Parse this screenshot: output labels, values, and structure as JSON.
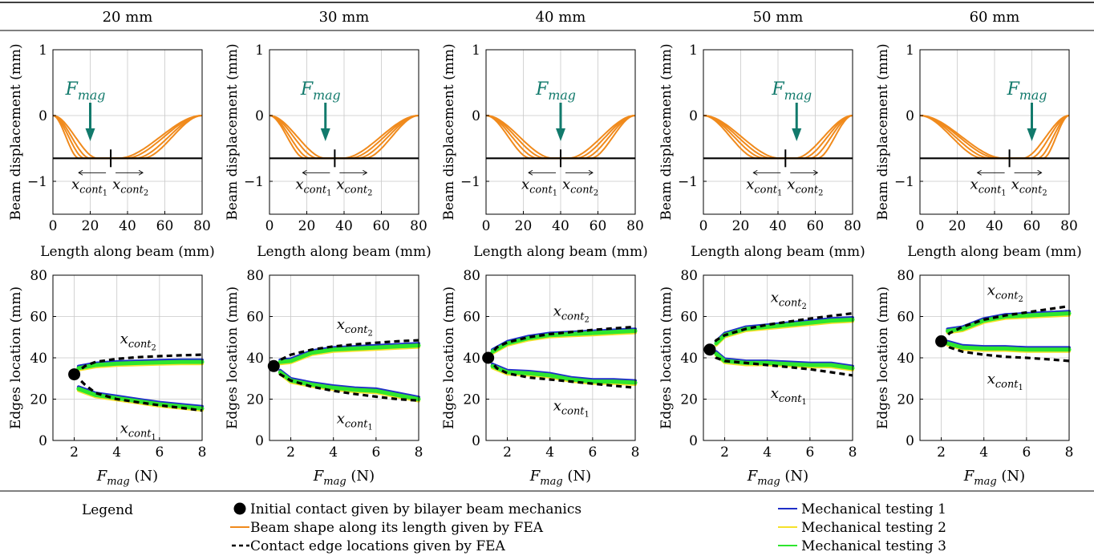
{
  "legend": {
    "title": "Legend",
    "items": [
      {
        "label": "Initial contact given by bilayer beam mechanics",
        "marker": "dot",
        "color": "#000000"
      },
      {
        "label": "Beam shape along its length given by FEA",
        "marker": "line",
        "color": "#f08a1c"
      },
      {
        "label": "Contact edge locations given by FEA",
        "marker": "dash",
        "color": "#000000"
      },
      {
        "label": "Mechanical testing 1",
        "marker": "line",
        "color": "#1f2fc8"
      },
      {
        "label": "Mechanical testing 2",
        "marker": "line",
        "color": "#f5e12a"
      },
      {
        "label": "Mechanical testing 3",
        "marker": "line",
        "color": "#2ee62e"
      }
    ]
  },
  "colors": {
    "fea": "#f08a1c",
    "arrow": "#127a6c",
    "test1": "#1f2fc8",
    "test2": "#f5e12a",
    "test3": "#2ee62e",
    "grid": "#c8c8c8"
  },
  "chart_data": [
    {
      "type": "line",
      "column": "20 mm",
      "title": "20 mm",
      "top": {
        "xlabel": "Length along beam (mm)",
        "ylabel": "Beam displacement (mm)",
        "xlim": [
          0,
          80
        ],
        "ylim": [
          -1.5,
          1
        ],
        "xticks": [
          0,
          20,
          40,
          60,
          80
        ],
        "yticks": [
          -1,
          0,
          1
        ],
        "contact_level": -0.65,
        "force_x": 20,
        "center_mark_x": 31,
        "fmag_label": "F_mag",
        "edge_labels": [
          "x_cont1",
          "x_cont2"
        ],
        "beam_profiles": [
          {
            "contact": [
              14,
              48
            ]
          },
          {
            "contact": [
              17,
              44
            ]
          },
          {
            "contact": [
              20,
              39
            ]
          },
          {
            "contact": [
              24,
              35
            ]
          }
        ]
      },
      "bottom": {
        "xlabel": "F_mag (N)",
        "ylabel": "Edges location (mm)",
        "xlim": [
          1,
          8
        ],
        "ylim": [
          0,
          80
        ],
        "xticks": [
          2,
          4,
          6,
          8
        ],
        "yticks": [
          0,
          20,
          40,
          60,
          80
        ],
        "initial_contact": [
          2,
          32
        ],
        "fea_upper": {
          "x": [
            2,
            2.5,
            3,
            4,
            5,
            6,
            7,
            8
          ],
          "y": [
            32,
            36,
            38,
            39.5,
            40.3,
            40.8,
            41.2,
            41.5
          ]
        },
        "fea_lower": {
          "x": [
            2,
            2.5,
            3,
            4,
            5,
            6,
            7,
            8
          ],
          "y": [
            32,
            27,
            23,
            20,
            18.5,
            17,
            15.8,
            14.5
          ]
        },
        "test_upper": {
          "x": [
            2.2,
            3,
            4,
            5,
            6,
            7,
            8
          ],
          "y": [
            35,
            36.5,
            37.2,
            37.5,
            37.8,
            38,
            38
          ]
        },
        "test_lower": {
          "x": [
            2.2,
            3,
            4,
            5,
            6,
            7,
            8
          ],
          "y": [
            25,
            22,
            20.5,
            19,
            17.5,
            16.5,
            15.5
          ]
        },
        "upper_label": "x_cont2",
        "lower_label": "x_cont1"
      }
    },
    {
      "type": "line",
      "column": "30 mm",
      "title": "30 mm",
      "top": {
        "xlabel": "Length along beam (mm)",
        "ylabel": "Beam displacement (mm)",
        "xlim": [
          0,
          80
        ],
        "ylim": [
          -1.5,
          1
        ],
        "xticks": [
          0,
          20,
          40,
          60,
          80
        ],
        "yticks": [
          -1,
          0,
          1
        ],
        "contact_level": -0.65,
        "force_x": 30,
        "center_mark_x": 35,
        "fmag_label": "F_mag",
        "edge_labels": [
          "x_cont1",
          "x_cont2"
        ],
        "beam_profiles": [
          {
            "contact": [
              19,
              51
            ]
          },
          {
            "contact": [
              22,
              47
            ]
          },
          {
            "contact": [
              26,
              43
            ]
          },
          {
            "contact": [
              30,
              39
            ]
          }
        ]
      },
      "bottom": {
        "xlabel": "F_mag (N)",
        "ylabel": "Edges location (mm)",
        "xlim": [
          1,
          8
        ],
        "ylim": [
          0,
          80
        ],
        "xticks": [
          2,
          4,
          6,
          8
        ],
        "yticks": [
          0,
          20,
          40,
          60,
          80
        ],
        "initial_contact": [
          1.2,
          36
        ],
        "fea_upper": {
          "x": [
            1.2,
            1.5,
            2,
            3,
            4,
            5,
            6,
            7,
            8
          ],
          "y": [
            36,
            39,
            41.5,
            44,
            45.5,
            46.5,
            47.3,
            48,
            48.5
          ]
        },
        "fea_lower": {
          "x": [
            1.2,
            1.5,
            2,
            3,
            4,
            5,
            6,
            7,
            8
          ],
          "y": [
            36,
            32,
            29,
            26,
            24,
            22.5,
            21.2,
            20,
            19.3
          ]
        },
        "test_upper": {
          "x": [
            1.5,
            2,
            3,
            4,
            5,
            6,
            7,
            8
          ],
          "y": [
            38,
            38.5,
            42.5,
            44,
            44.5,
            45,
            45.5,
            46
          ]
        },
        "test_lower": {
          "x": [
            1.5,
            2,
            3,
            4,
            5,
            6,
            7,
            8
          ],
          "y": [
            33,
            29,
            27,
            25.5,
            24.5,
            24,
            22,
            20
          ]
        },
        "upper_label": "x_cont2",
        "lower_label": "x_cont1"
      }
    },
    {
      "type": "line",
      "column": "40 mm",
      "title": "40 mm",
      "top": {
        "xlabel": "Length along beam (mm)",
        "ylabel": "Beam displacement (mm)",
        "xlim": [
          0,
          80
        ],
        "ylim": [
          -1.5,
          1
        ],
        "xticks": [
          0,
          20,
          40,
          60,
          80
        ],
        "yticks": [
          -1,
          0,
          1
        ],
        "contact_level": -0.65,
        "force_x": 40,
        "center_mark_x": 40,
        "fmag_label": "F_mag",
        "edge_labels": [
          "x_cont1",
          "x_cont2"
        ],
        "beam_profiles": [
          {
            "contact": [
              24,
              56
            ]
          },
          {
            "contact": [
              28,
              52
            ]
          },
          {
            "contact": [
              32,
              48
            ]
          },
          {
            "contact": [
              36,
              44
            ]
          }
        ]
      },
      "bottom": {
        "xlabel": "F_mag (N)",
        "ylabel": "Edges location (mm)",
        "xlim": [
          1,
          8
        ],
        "ylim": [
          0,
          80
        ],
        "xticks": [
          2,
          4,
          6,
          8
        ],
        "yticks": [
          0,
          20,
          40,
          60,
          80
        ],
        "initial_contact": [
          1.1,
          40
        ],
        "fea_upper": {
          "x": [
            1.1,
            1.5,
            2,
            3,
            4,
            5,
            6,
            7,
            8
          ],
          "y": [
            40,
            45,
            47.5,
            50,
            51.5,
            52.5,
            53.5,
            54.3,
            55
          ]
        },
        "fea_lower": {
          "x": [
            1.1,
            1.5,
            2,
            3,
            4,
            5,
            6,
            7,
            8
          ],
          "y": [
            40,
            35,
            32.5,
            30.5,
            29.5,
            28.5,
            27.5,
            26.5,
            25.5
          ]
        },
        "test_upper": {
          "x": [
            1.3,
            2,
            3,
            4,
            5,
            6,
            7,
            8
          ],
          "y": [
            43,
            47,
            49.5,
            51,
            51.5,
            52,
            52.5,
            53
          ]
        },
        "test_lower": {
          "x": [
            1.3,
            2,
            3,
            4,
            5,
            6,
            7,
            8
          ],
          "y": [
            36,
            33,
            32.5,
            31.5,
            29.5,
            28.5,
            28.5,
            28
          ]
        },
        "upper_label": "x_cont2",
        "lower_label": "x_cont1"
      }
    },
    {
      "type": "line",
      "column": "50 mm",
      "title": "50 mm",
      "top": {
        "xlabel": "Length along beam (mm)",
        "ylabel": "Beam displacement (mm)",
        "xlim": [
          0,
          80
        ],
        "ylim": [
          -1.5,
          1
        ],
        "xticks": [
          0,
          20,
          40,
          60,
          80
        ],
        "yticks": [
          -1,
          0,
          1
        ],
        "contact_level": -0.65,
        "force_x": 50,
        "center_mark_x": 44,
        "fmag_label": "F_mag",
        "edge_labels": [
          "x_cont1",
          "x_cont2"
        ],
        "beam_profiles": [
          {
            "contact": [
              29,
              61
            ]
          },
          {
            "contact": [
              33,
              57
            ]
          },
          {
            "contact": [
              37,
              53
            ]
          },
          {
            "contact": [
              41,
              49
            ]
          }
        ]
      },
      "bottom": {
        "xlabel": "F_mag (N)",
        "ylabel": "Edges location (mm)",
        "xlim": [
          1,
          8
        ],
        "ylim": [
          0,
          80
        ],
        "xticks": [
          2,
          4,
          6,
          8
        ],
        "yticks": [
          0,
          20,
          40,
          60,
          80
        ],
        "initial_contact": [
          1.3,
          44
        ],
        "fea_upper": {
          "x": [
            1.3,
            1.6,
            2,
            3,
            4,
            5,
            6,
            7,
            8
          ],
          "y": [
            44,
            48.5,
            51,
            54,
            56,
            57.5,
            59,
            60.3,
            61.5
          ]
        },
        "fea_lower": {
          "x": [
            1.3,
            1.6,
            2,
            3,
            4,
            5,
            6,
            7,
            8
          ],
          "y": [
            44,
            40,
            38.5,
            37.5,
            36.5,
            35.5,
            34.5,
            33,
            31.5
          ]
        },
        "test_upper": {
          "x": [
            1.6,
            2,
            3,
            4,
            5,
            6,
            7,
            8
          ],
          "y": [
            47,
            51,
            54,
            55,
            56,
            57,
            58,
            58.5
          ]
        },
        "test_lower": {
          "x": [
            1.6,
            2,
            3,
            4,
            5,
            6,
            7,
            8
          ],
          "y": [
            42,
            38.5,
            37.5,
            37.5,
            37,
            36.5,
            36.5,
            35
          ]
        },
        "upper_label": "x_cont2",
        "lower_label": "x_cont1"
      }
    },
    {
      "type": "line",
      "column": "60 mm",
      "title": "60 mm",
      "top": {
        "xlabel": "Length along beam (mm)",
        "ylabel": "Beam displacement (mm)",
        "xlim": [
          0,
          80
        ],
        "ylim": [
          -1.5,
          1
        ],
        "xticks": [
          0,
          20,
          40,
          60,
          80
        ],
        "yticks": [
          -1,
          0,
          1
        ],
        "contact_level": -0.65,
        "force_x": 60,
        "center_mark_x": 48,
        "fmag_label": "F_mag",
        "edge_labels": [
          "x_cont1",
          "x_cont2"
        ],
        "beam_profiles": [
          {
            "contact": [
              34,
              66
            ]
          },
          {
            "contact": [
              38,
              63
            ]
          },
          {
            "contact": [
              42,
              59
            ]
          },
          {
            "contact": [
              45,
              55
            ]
          }
        ]
      },
      "bottom": {
        "xlabel": "F_mag (N)",
        "ylabel": "Edges location (mm)",
        "xlim": [
          1,
          8
        ],
        "ylim": [
          0,
          80
        ],
        "xticks": [
          2,
          4,
          6,
          8
        ],
        "yticks": [
          0,
          20,
          40,
          60,
          80
        ],
        "initial_contact": [
          2,
          48
        ],
        "fea_upper": {
          "x": [
            2,
            2.4,
            3,
            4,
            5,
            6,
            7,
            8
          ],
          "y": [
            48,
            52,
            55,
            58.5,
            60.5,
            62,
            63.5,
            65
          ]
        },
        "fea_lower": {
          "x": [
            2,
            2.4,
            3,
            4,
            5,
            6,
            7,
            8
          ],
          "y": [
            48,
            45,
            43,
            41.5,
            40.5,
            40,
            39.3,
            38.5
          ]
        },
        "test_upper": {
          "x": [
            2.3,
            3,
            4,
            5,
            6,
            7,
            8
          ],
          "y": [
            53,
            54,
            58,
            60,
            60.5,
            61,
            61.5
          ]
        },
        "test_lower": {
          "x": [
            2.3,
            3,
            4,
            5,
            6,
            7,
            8
          ],
          "y": [
            47,
            45,
            44.5,
            44.5,
            44,
            44,
            44
          ]
        },
        "upper_label": "x_cont2",
        "lower_label": "x_cont1"
      }
    }
  ]
}
